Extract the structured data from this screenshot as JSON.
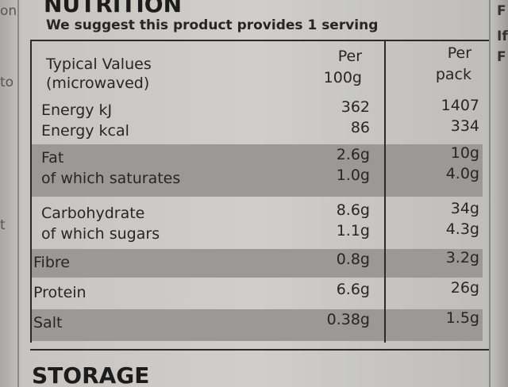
{
  "side_left": [
    "on",
    "to",
    "t"
  ],
  "side_right": [
    "F",
    "If",
    "F"
  ],
  "header": {
    "title": "NUTRITION",
    "subtitle": "We suggest this product provides 1 serving"
  },
  "table": {
    "columns": [
      [
        "Typical Values",
        "(microwaved)"
      ],
      [
        "Per",
        "100g"
      ],
      [
        "Per",
        "pack"
      ]
    ],
    "rows": [
      {
        "labels": [
          "Energy kJ",
          "Energy kcal"
        ],
        "per_100g": [
          "362",
          "86"
        ],
        "per_pack": [
          "1407",
          "334"
        ],
        "shaded": false
      },
      {
        "labels": [
          "Fat",
          "of which saturates"
        ],
        "per_100g": [
          "2.6g",
          "1.0g"
        ],
        "per_pack": [
          "10g",
          "4.0g"
        ],
        "shaded": true
      },
      {
        "labels": [
          "Carbohydrate",
          "of which sugars"
        ],
        "per_100g": [
          "8.6g",
          "1.1g"
        ],
        "per_pack": [
          "34g",
          "4.3g"
        ],
        "shaded": false
      },
      {
        "labels": [
          "Fibre"
        ],
        "per_100g": [
          "0.8g"
        ],
        "per_pack": [
          "3.2g"
        ],
        "shaded": true
      },
      {
        "labels": [
          "Protein"
        ],
        "per_100g": [
          "6.6g"
        ],
        "per_pack": [
          "26g"
        ],
        "shaded": false
      },
      {
        "labels": [
          "Salt"
        ],
        "per_100g": [
          "0.38g"
        ],
        "per_pack": [
          "1.5g"
        ],
        "shaded": true
      }
    ]
  },
  "footer": {
    "heading": "STORAGE"
  }
}
